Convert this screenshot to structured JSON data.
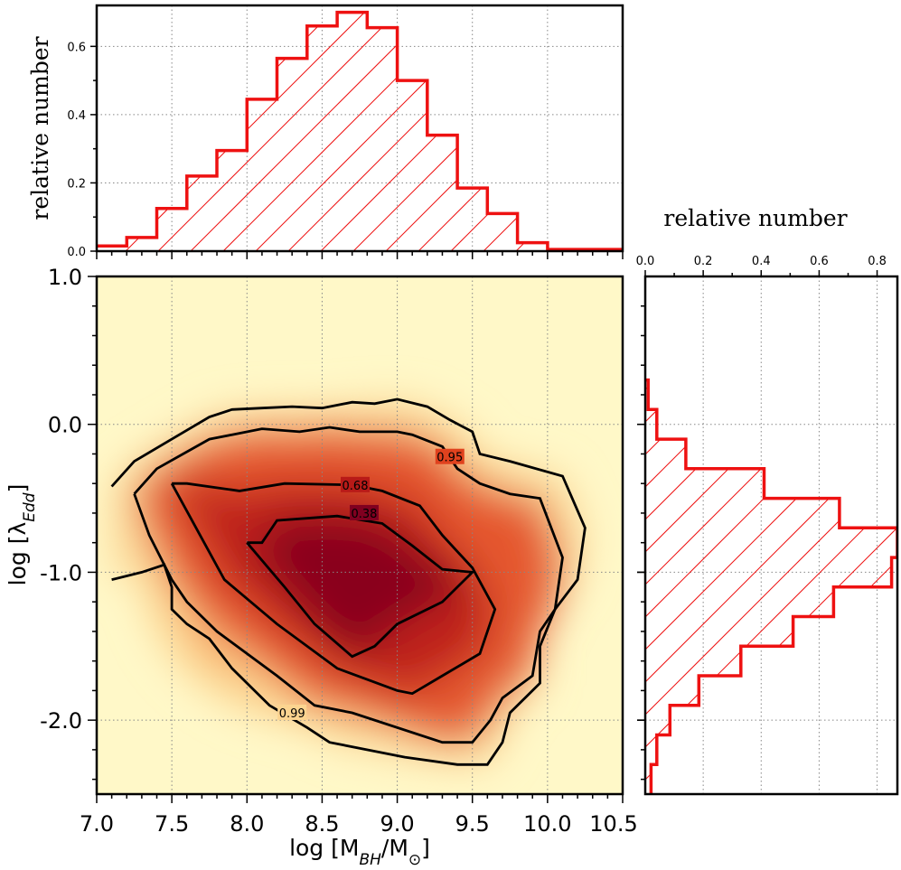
{
  "chart_data": [
    {
      "id": "main",
      "type": "heatmap",
      "description_units": "density contours",
      "xlabel": "log [M_BH/M_⊙]",
      "ylabel": "log [λ_Edd]",
      "xlim": [
        7.0,
        10.5
      ],
      "ylim": [
        -2.5,
        1.0
      ],
      "x_ticks": [
        7.0,
        7.5,
        8.0,
        8.5,
        9.0,
        9.5,
        10.0,
        10.5
      ],
      "x_tick_labels": [
        "7.0",
        "7.5",
        "8.0",
        "8.5",
        "9.0",
        "9.5",
        "10.0",
        "10.5"
      ],
      "y_ticks": [
        -2.0,
        -1.0,
        0.0,
        1.0
      ],
      "y_tick_labels": [
        "-2.0",
        "-1.0",
        "0.0",
        "1.0"
      ],
      "colormap": [
        "#fff8c8",
        "#fcd490",
        "#f7954a",
        "#e0421e",
        "#b81a18",
        "#800020"
      ],
      "contours": [
        {
          "level": "0.38",
          "points": [
            [
              8.0,
              -0.8
            ],
            [
              8.1,
              -0.8
            ],
            [
              8.2,
              -0.65
            ],
            [
              8.6,
              -0.62
            ],
            [
              8.9,
              -0.67
            ],
            [
              9.1,
              -0.82
            ],
            [
              9.3,
              -0.98
            ],
            [
              9.5,
              -1.0
            ],
            [
              9.3,
              -1.2
            ],
            [
              9.0,
              -1.35
            ],
            [
              8.85,
              -1.5
            ],
            [
              8.7,
              -1.57
            ],
            [
              8.45,
              -1.35
            ],
            [
              8.25,
              -1.1
            ],
            [
              8.0,
              -0.8
            ]
          ],
          "label_at": [
            8.78,
            -0.6
          ]
        },
        {
          "level": "0.68",
          "points": [
            [
              7.5,
              -0.4
            ],
            [
              7.6,
              -0.4
            ],
            [
              7.95,
              -0.45
            ],
            [
              8.25,
              -0.4
            ],
            [
              8.7,
              -0.41
            ],
            [
              8.9,
              -0.45
            ],
            [
              9.15,
              -0.55
            ],
            [
              9.3,
              -0.75
            ],
            [
              9.5,
              -0.97
            ],
            [
              9.65,
              -1.25
            ],
            [
              9.55,
              -1.55
            ],
            [
              9.3,
              -1.7
            ],
            [
              9.1,
              -1.82
            ],
            [
              9.0,
              -1.8
            ],
            [
              8.6,
              -1.65
            ],
            [
              8.2,
              -1.35
            ],
            [
              7.85,
              -1.05
            ],
            [
              7.5,
              -0.4
            ]
          ],
          "label_at": [
            8.72,
            -0.41
          ]
        },
        {
          "level": "0.95",
          "points": [
            [
              7.25,
              -0.47
            ],
            [
              7.4,
              -0.3
            ],
            [
              7.75,
              -0.1
            ],
            [
              7.9,
              -0.07
            ],
            [
              8.1,
              -0.03
            ],
            [
              8.35,
              -0.05
            ],
            [
              8.55,
              -0.02
            ],
            [
              8.75,
              -0.05
            ],
            [
              9.0,
              -0.05
            ],
            [
              9.1,
              -0.07
            ],
            [
              9.3,
              -0.15
            ],
            [
              9.4,
              -0.3
            ],
            [
              9.55,
              -0.4
            ],
            [
              9.75,
              -0.47
            ],
            [
              9.95,
              -0.5
            ],
            [
              10.1,
              -0.9
            ],
            [
              10.05,
              -1.25
            ],
            [
              9.95,
              -1.4
            ],
            [
              9.9,
              -1.7
            ],
            [
              9.7,
              -1.85
            ],
            [
              9.62,
              -2.0
            ],
            [
              9.5,
              -2.15
            ],
            [
              9.3,
              -2.15
            ],
            [
              8.7,
              -1.95
            ],
            [
              8.45,
              -1.9
            ],
            [
              8.2,
              -1.7
            ],
            [
              7.8,
              -1.4
            ],
            [
              7.6,
              -1.2
            ],
            [
              7.5,
              -1.05
            ],
            [
              7.35,
              -0.75
            ],
            [
              7.25,
              -0.47
            ]
          ],
          "label_at": [
            9.35,
            -0.22
          ]
        },
        {
          "level": "0.99",
          "points": [
            [
              7.1,
              -0.42
            ],
            [
              7.25,
              -0.25
            ],
            [
              7.5,
              -0.1
            ],
            [
              7.75,
              0.05
            ],
            [
              7.9,
              0.1
            ],
            [
              8.1,
              0.11
            ],
            [
              8.3,
              0.12
            ],
            [
              8.5,
              0.11
            ],
            [
              8.7,
              0.15
            ],
            [
              8.85,
              0.14
            ],
            [
              9.0,
              0.17
            ],
            [
              9.2,
              0.12
            ],
            [
              9.35,
              0.03
            ],
            [
              9.5,
              -0.05
            ],
            [
              9.55,
              -0.2
            ],
            [
              9.75,
              -0.25
            ],
            [
              10.1,
              -0.35
            ],
            [
              10.25,
              -0.7
            ],
            [
              10.2,
              -1.05
            ],
            [
              10.05,
              -1.25
            ],
            [
              9.95,
              -1.5
            ],
            [
              9.95,
              -1.75
            ],
            [
              9.85,
              -1.85
            ],
            [
              9.75,
              -1.95
            ],
            [
              9.7,
              -2.15
            ],
            [
              9.6,
              -2.3
            ],
            [
              9.4,
              -2.3
            ],
            [
              9.05,
              -2.25
            ],
            [
              8.55,
              -2.15
            ],
            [
              8.4,
              -2.05
            ],
            [
              8.15,
              -1.9
            ],
            [
              7.9,
              -1.65
            ],
            [
              7.75,
              -1.45
            ],
            [
              7.6,
              -1.35
            ],
            [
              7.5,
              -1.25
            ],
            [
              7.5,
              -1.1
            ],
            [
              7.45,
              -0.95
            ],
            [
              7.3,
              -1.0
            ],
            [
              7.1,
              -1.05
            ]
          ],
          "label_at": [
            8.3,
            -1.95
          ]
        }
      ],
      "density_blobs": [
        {
          "x": 8.65,
          "y": -1.0,
          "rx": 0.45,
          "ry": 0.45,
          "level": 5
        },
        {
          "x": 8.4,
          "y": -0.8,
          "rx": 0.55,
          "ry": 0.5,
          "level": 4
        },
        {
          "x": 8.6,
          "y": -0.9,
          "rx": 0.85,
          "ry": 0.7,
          "level": 3
        },
        {
          "x": 8.6,
          "y": -0.95,
          "rx": 1.1,
          "ry": 0.95,
          "level": 2
        },
        {
          "x": 8.6,
          "y": -1.0,
          "rx": 1.3,
          "ry": 1.05,
          "level": 1
        }
      ]
    },
    {
      "id": "top",
      "type": "bar",
      "orientation": "vertical",
      "ylabel": "relative number",
      "xlim": [
        7.0,
        10.5
      ],
      "ylim": [
        0,
        0.72
      ],
      "y_ticks": [
        0.0,
        0.2,
        0.4,
        0.6
      ],
      "y_tick_labels": [
        "0.0",
        "0.2",
        "0.4",
        "0.6"
      ],
      "bin_edges": [
        7.0,
        7.2,
        7.4,
        7.6,
        7.8,
        8.0,
        8.2,
        8.4,
        8.6,
        8.8,
        9.0,
        9.2,
        9.4,
        9.6,
        9.8,
        10.0,
        10.2,
        10.5
      ],
      "values": [
        0.015,
        0.04,
        0.125,
        0.22,
        0.295,
        0.445,
        0.565,
        0.66,
        0.7,
        0.655,
        0.5,
        0.34,
        0.185,
        0.11,
        0.025,
        0.005,
        0.005
      ]
    },
    {
      "id": "right",
      "type": "bar",
      "orientation": "horizontal",
      "xlabel": "relative number",
      "xlim": [
        0,
        0.87
      ],
      "ylim": [
        -2.5,
        1.0
      ],
      "x_ticks": [
        0.0,
        0.2,
        0.4,
        0.6,
        0.8
      ],
      "x_tick_labels": [
        "0.0",
        "0.2",
        "0.4",
        "0.6",
        "0.8"
      ],
      "bin_edges": [
        -2.5,
        -2.3,
        -2.1,
        -1.9,
        -1.7,
        -1.5,
        -1.3,
        -1.1,
        -0.9,
        -0.7,
        -0.5,
        -0.3,
        -0.1,
        0.1,
        0.3
      ],
      "values": [
        0.02,
        0.04,
        0.085,
        0.185,
        0.33,
        0.51,
        0.65,
        0.85,
        0.87,
        0.67,
        0.41,
        0.14,
        0.04,
        0.01
      ]
    }
  ]
}
